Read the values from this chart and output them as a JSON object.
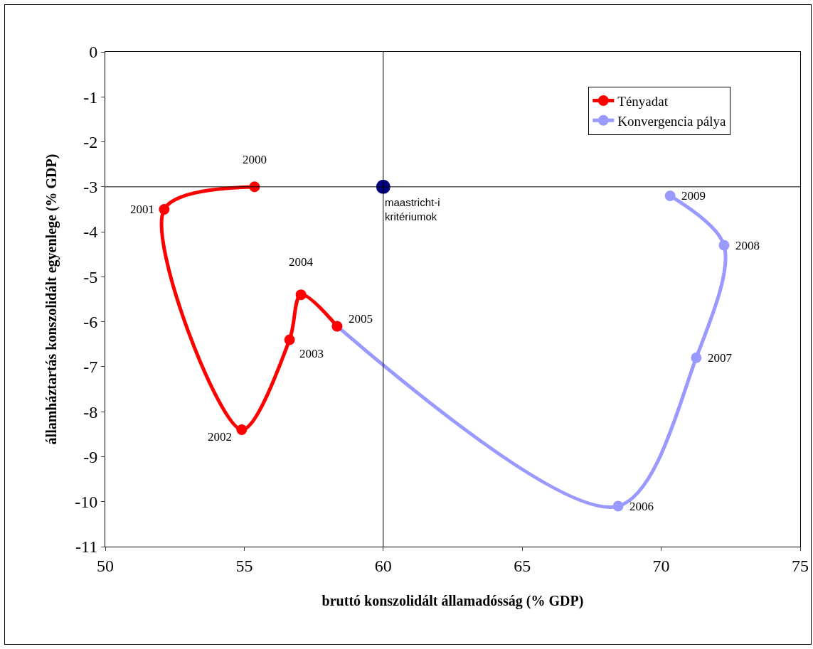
{
  "chart_data": {
    "type": "line",
    "xlabel": "bruttó konszolidált államadósság (% GDP)",
    "ylabel": "államháztartás konszolidált egyenlege (% GDP)",
    "series": [
      {
        "name": "Tényadat",
        "color": "#ff0000",
        "x": [
          55.37,
          52.12,
          54.91,
          56.63,
          57.04,
          58.34
        ],
        "values": [
          -3.0,
          -3.5,
          -8.4,
          -6.4,
          -5.4,
          -6.1
        ]
      },
      {
        "name": "Konvergencia pálya",
        "color": "#9999ff",
        "x": [
          58.34,
          68.45,
          71.26,
          72.26,
          70.32
        ],
        "values": [
          -6.1,
          -10.1,
          -6.8,
          -4.3,
          -3.2
        ]
      },
      {
        "type": "scatter",
        "color": "#000080",
        "x": [
          60
        ],
        "values": [
          -3
        ]
      }
    ],
    "xlim": [
      50,
      75
    ],
    "xticks": [
      50,
      55,
      60,
      65,
      70,
      75
    ],
    "ylim": [
      -11,
      0
    ],
    "yticks": [
      0,
      -1,
      -2,
      -3,
      -4,
      -5,
      -6,
      -7,
      -8,
      -9,
      -10,
      -11
    ],
    "grid": false,
    "legend": "top right",
    "marker": "circle",
    "line_style": "solid",
    "ref_lines": [
      {
        "axis": "x",
        "value": 60,
        "color": "#000000"
      },
      {
        "axis": "y",
        "value": -3,
        "color": "#000000"
      }
    ],
    "annotations": [
      {
        "text": "2000",
        "x": 55.37,
        "y": -3.0
      },
      {
        "text": "2001",
        "x": 52.12,
        "y": -3.5
      },
      {
        "text": "2002",
        "x": 54.91,
        "y": -8.4
      },
      {
        "text": "2003",
        "x": 56.63,
        "y": -6.4
      },
      {
        "text": "2004",
        "x": 57.04,
        "y": -5.4
      },
      {
        "text": "2005",
        "x": 58.34,
        "y": -6.1
      },
      {
        "text": "2006",
        "x": 68.45,
        "y": -10.1
      },
      {
        "text": "2007",
        "x": 71.26,
        "y": -6.8
      },
      {
        "text": "2008",
        "x": 72.26,
        "y": -4.3
      },
      {
        "text": "2009",
        "x": 70.32,
        "y": -3.2
      },
      {
        "text": "maastricht-i\nkritériumok",
        "x": 60,
        "y": -3
      }
    ]
  }
}
